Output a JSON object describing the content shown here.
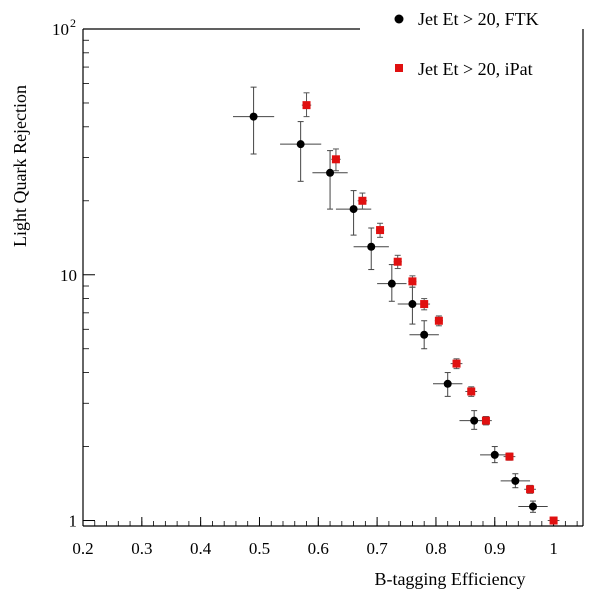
{
  "chart_data": {
    "type": "scatter",
    "xlabel": "B-tagging Efficiency",
    "ylabel": "Light Quark Rejection",
    "xlim": [
      0.2,
      1.05
    ],
    "ylim": [
      0.95,
      100
    ],
    "y_scale": "log",
    "x_ticks": [
      {
        "value": 0.2,
        "label": "0.2"
      },
      {
        "value": 0.3,
        "label": "0.3"
      },
      {
        "value": 0.4,
        "label": "0.4"
      },
      {
        "value": 0.5,
        "label": "0.5"
      },
      {
        "value": 0.6,
        "label": "0.6"
      },
      {
        "value": 0.7,
        "label": "0.7"
      },
      {
        "value": 0.8,
        "label": "0.8"
      },
      {
        "value": 0.9,
        "label": "0.9"
      },
      {
        "value": 1.0,
        "label": "1"
      }
    ],
    "y_ticks": [
      {
        "value": 1,
        "label": "1"
      },
      {
        "value": 10,
        "label": "10"
      },
      {
        "value": 100,
        "label": "10",
        "sup": "2"
      }
    ],
    "grid": false,
    "legend_position": "top-right",
    "series": [
      {
        "name": "Jet Et > 20, FTK",
        "color": "#000000",
        "marker": "circle",
        "points": [
          {
            "x": 0.49,
            "y": 44,
            "xerr": 0.035,
            "ylo": 31,
            "yhi": 58
          },
          {
            "x": 0.57,
            "y": 34,
            "xerr": 0.035,
            "ylo": 24,
            "yhi": 42
          },
          {
            "x": 0.62,
            "y": 26,
            "xerr": 0.03,
            "ylo": 18.5,
            "yhi": 32
          },
          {
            "x": 0.66,
            "y": 18.5,
            "xerr": 0.03,
            "ylo": 14.5,
            "yhi": 22
          },
          {
            "x": 0.69,
            "y": 13,
            "xerr": 0.03,
            "ylo": 10.5,
            "yhi": 15.5
          },
          {
            "x": 0.725,
            "y": 9.2,
            "xerr": 0.025,
            "ylo": 7.8,
            "yhi": 11
          },
          {
            "x": 0.76,
            "y": 7.6,
            "xerr": 0.025,
            "ylo": 6.3,
            "yhi": 8.9
          },
          {
            "x": 0.78,
            "y": 5.7,
            "xerr": 0.025,
            "ylo": 5.0,
            "yhi": 6.5
          },
          {
            "x": 0.82,
            "y": 3.6,
            "xerr": 0.025,
            "ylo": 3.2,
            "yhi": 4.0
          },
          {
            "x": 0.865,
            "y": 2.55,
            "xerr": 0.025,
            "ylo": 2.35,
            "yhi": 2.8
          },
          {
            "x": 0.9,
            "y": 1.85,
            "xerr": 0.025,
            "ylo": 1.72,
            "yhi": 2.0
          },
          {
            "x": 0.935,
            "y": 1.45,
            "xerr": 0.025,
            "ylo": 1.36,
            "yhi": 1.55
          },
          {
            "x": 0.965,
            "y": 1.14,
            "xerr": 0.025,
            "ylo": 1.08,
            "yhi": 1.2
          }
        ]
      },
      {
        "name": "Jet Et > 20, iPat",
        "color": "#e01010",
        "marker": "square",
        "points": [
          {
            "x": 0.58,
            "y": 49,
            "xerr": 0.008,
            "ylo": 44,
            "yhi": 55
          },
          {
            "x": 0.63,
            "y": 29.5,
            "xerr": 0.008,
            "ylo": 26.5,
            "yhi": 32.5
          },
          {
            "x": 0.675,
            "y": 20,
            "xerr": 0.008,
            "ylo": 18.5,
            "yhi": 21.5
          },
          {
            "x": 0.705,
            "y": 15.2,
            "xerr": 0.007,
            "ylo": 14.2,
            "yhi": 16.2
          },
          {
            "x": 0.735,
            "y": 11.3,
            "xerr": 0.007,
            "ylo": 10.6,
            "yhi": 12.0
          },
          {
            "x": 0.76,
            "y": 9.4,
            "xerr": 0.007,
            "ylo": 8.9,
            "yhi": 9.9
          },
          {
            "x": 0.78,
            "y": 7.6,
            "xerr": 0.01,
            "ylo": 7.2,
            "yhi": 8.0
          },
          {
            "x": 0.805,
            "y": 6.5,
            "xerr": 0.007,
            "ylo": 6.2,
            "yhi": 6.8
          },
          {
            "x": 0.835,
            "y": 4.35,
            "xerr": 0.01,
            "ylo": 4.15,
            "yhi": 4.55
          },
          {
            "x": 0.86,
            "y": 3.35,
            "xerr": 0.01,
            "ylo": 3.2,
            "yhi": 3.5
          },
          {
            "x": 0.885,
            "y": 2.55,
            "xerr": 0.01,
            "ylo": 2.45,
            "yhi": 2.65
          },
          {
            "x": 0.925,
            "y": 1.82,
            "xerr": 0.01,
            "ylo": 1.76,
            "yhi": 1.88
          },
          {
            "x": 0.96,
            "y": 1.34,
            "xerr": 0.01,
            "ylo": 1.29,
            "yhi": 1.39
          },
          {
            "x": 1.0,
            "y": 1.0,
            "xerr": 0.01,
            "ylo": 0.97,
            "yhi": 1.03
          }
        ]
      }
    ]
  }
}
